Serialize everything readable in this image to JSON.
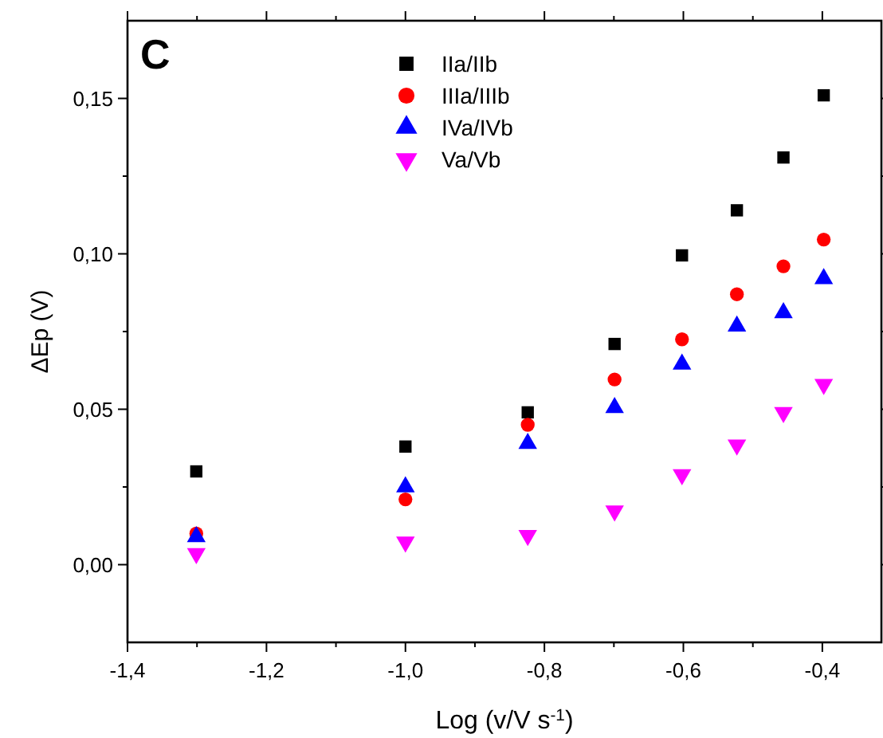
{
  "chart_data": {
    "type": "scatter",
    "xlabel": "Log (v/V s$^{-1}$)",
    "ylabel": "ΔEp (V)",
    "annotations": [
      "C"
    ],
    "x": [
      -1.301,
      -1.0,
      -0.824,
      -0.699,
      -0.602,
      -0.523,
      -0.456,
      -0.398
    ],
    "xlim": [
      -1.4,
      -0.315
    ],
    "xticks": [
      {
        "value": -1.4,
        "label": "-1,4"
      },
      {
        "value": -1.3,
        "label": null
      },
      {
        "value": -1.2,
        "label": "-1,2"
      },
      {
        "value": -1.1,
        "label": null
      },
      {
        "value": -1.0,
        "label": "-1,0"
      },
      {
        "value": -0.9,
        "label": null
      },
      {
        "value": -0.8,
        "label": "-0,8"
      },
      {
        "value": -0.7,
        "label": null
      },
      {
        "value": -0.6,
        "label": "-0,6"
      },
      {
        "value": -0.5,
        "label": null
      },
      {
        "value": -0.4,
        "label": "-0,4"
      }
    ],
    "ylim": [
      -0.025,
      0.175
    ],
    "yticks": [
      {
        "value": 0,
        "label": "0,00"
      },
      {
        "value": 0.025,
        "label": null
      },
      {
        "value": 0.05,
        "label": "0,05"
      },
      {
        "value": 0.075,
        "label": null
      },
      {
        "value": 0.1,
        "label": "0,10"
      },
      {
        "value": 0.125,
        "label": null
      },
      {
        "value": 0.15,
        "label": "0,15"
      }
    ],
    "legend": "top",
    "grid": false,
    "series": [
      {
        "name": "IIa/IIb",
        "color": "#000000",
        "marker": "square",
        "values": [
          0.03,
          0.038,
          0.049,
          0.071,
          0.0995,
          0.114,
          0.131,
          0.151
        ]
      },
      {
        "name": "IIIa/IIIb",
        "color": "#ff0000",
        "marker": "circle",
        "values": [
          0.01,
          0.021,
          0.045,
          0.0596,
          0.0725,
          0.087,
          0.096,
          0.1046
        ]
      },
      {
        "name": "IVa/IVb",
        "color": "#0000ff",
        "marker": "triangle",
        "values": [
          0.009,
          0.025,
          0.039,
          0.0505,
          0.0645,
          0.0767,
          0.081,
          0.092
        ]
      },
      {
        "name": "Va/Vb",
        "color": "#ff00ff",
        "marker": "triangle-down",
        "values": [
          0.0036,
          0.0073,
          0.0094,
          0.0173,
          0.029,
          0.0385,
          0.049,
          0.058
        ]
      }
    ]
  }
}
